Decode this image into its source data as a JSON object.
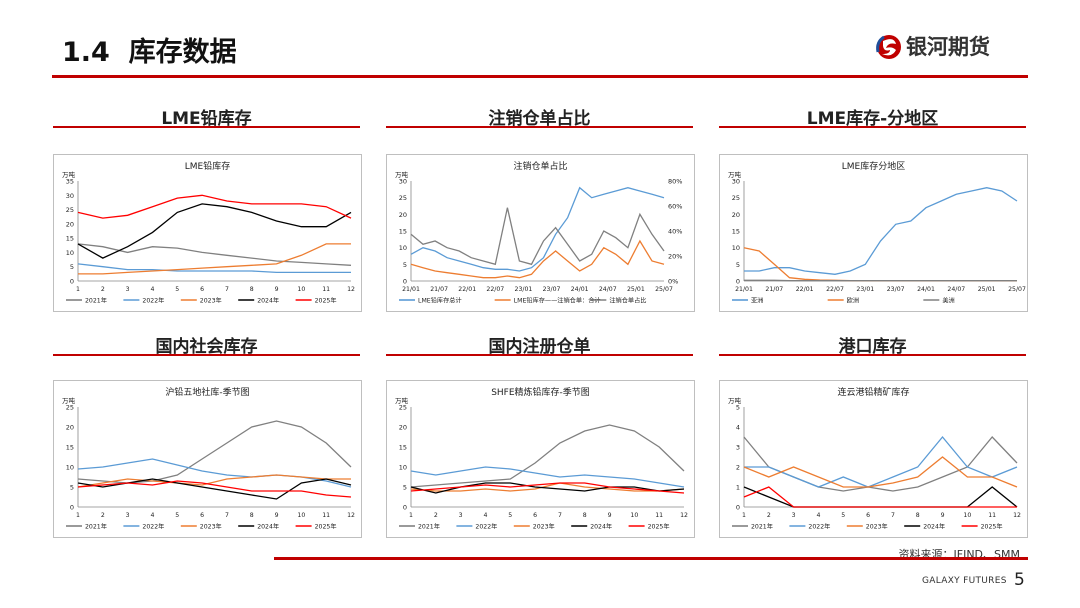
{
  "header": {
    "title": "1.4  库存数据",
    "logo_text": "银河期货"
  },
  "source": "资料来源：IFIND、SMM",
  "footer": {
    "company": "GALAXY FUTURES",
    "page": "5"
  },
  "colors": {
    "accent": "#c00000"
  },
  "sections": [
    "LME铅库存",
    "注销仓单占比",
    "LME库存-分地区",
    "国内社会库存",
    "国内注册仓单",
    "港口库存"
  ],
  "chart_data": [
    {
      "type": "line",
      "title": "LME铅库存",
      "unit": "万吨",
      "ylim": [
        0,
        35
      ],
      "yticks": [
        "0",
        "5",
        "10",
        "15",
        "20",
        "25",
        "30",
        "35"
      ],
      "x": [
        1,
        2,
        3,
        4,
        5,
        6,
        7,
        8,
        9,
        10,
        11,
        12
      ],
      "xticks": [
        "1",
        "2",
        "3",
        "4",
        "5",
        "6",
        "7",
        "8",
        "9",
        "10",
        "11",
        "12"
      ],
      "series": [
        {
          "name": "2021年",
          "color": "#808080",
          "values": [
            13,
            12,
            10,
            12,
            11.5,
            10,
            9,
            8,
            7,
            6.5,
            6,
            5.5
          ]
        },
        {
          "name": "2022年",
          "color": "#5b9bd5",
          "values": [
            6,
            5,
            4,
            4,
            3.5,
            3.5,
            3.5,
            3.5,
            3,
            3,
            3,
            3
          ]
        },
        {
          "name": "2023年",
          "color": "#ed7d31",
          "values": [
            2.5,
            2.5,
            3,
            3.5,
            4,
            4.5,
            5,
            5.5,
            6,
            9,
            13,
            13
          ]
        },
        {
          "name": "2024年",
          "color": "#000000",
          "values": [
            13,
            8,
            12,
            17,
            24,
            27,
            26,
            24,
            21,
            19,
            19,
            24
          ]
        },
        {
          "name": "2025年",
          "color": "#ff0000",
          "values": [
            24,
            22,
            23,
            26,
            29,
            30,
            28,
            27,
            27,
            27,
            26,
            22
          ]
        }
      ]
    },
    {
      "type": "line",
      "title": "注销仓单占比",
      "unit": "万吨",
      "ylim": [
        0,
        30
      ],
      "yticks": [
        "0",
        "5",
        "10",
        "15",
        "20",
        "25",
        "30"
      ],
      "y2ticks": [
        "0%",
        "20%",
        "40%",
        "60%",
        "80%"
      ],
      "xticks": [
        "21/01",
        "21/07",
        "22/01",
        "22/07",
        "23/01",
        "23/07",
        "24/01",
        "24/07",
        "25/01",
        "25/07"
      ],
      "series": [
        {
          "name": "LME铅库存总计",
          "color": "#5b9bd5",
          "values": [
            8,
            10,
            9,
            7,
            6,
            5,
            4,
            3.5,
            3.5,
            3,
            4,
            7,
            14,
            19,
            28,
            25,
            26,
            27,
            28,
            27,
            26,
            25
          ]
        },
        {
          "name": "LME铅库存——注销仓单：合计",
          "color": "#ed7d31",
          "values": [
            5,
            4,
            3,
            2.5,
            2,
            1.5,
            1,
            1,
            1.5,
            1,
            2,
            6,
            9,
            6,
            3,
            5,
            10,
            8,
            5,
            12,
            6,
            5
          ]
        },
        {
          "name": "注销仓单占比",
          "color": "#808080",
          "values": [
            14,
            11,
            12,
            10,
            9,
            7,
            6,
            5,
            22,
            6,
            5,
            12,
            16,
            11,
            6,
            8,
            15,
            13,
            10,
            20,
            14,
            9
          ]
        }
      ]
    },
    {
      "type": "line",
      "title": "LME库存分地区",
      "unit": "万吨",
      "ylim": [
        0,
        30
      ],
      "yticks": [
        "0",
        "5",
        "10",
        "15",
        "20",
        "25",
        "30"
      ],
      "xticks": [
        "21/01",
        "21/07",
        "22/01",
        "22/07",
        "23/01",
        "23/07",
        "24/01",
        "24/07",
        "25/01",
        "25/07"
      ],
      "series": [
        {
          "name": "亚洲",
          "color": "#5b9bd5",
          "values": [
            3,
            3,
            4,
            4,
            3,
            2.5,
            2,
            3,
            5,
            12,
            17,
            18,
            22,
            24,
            26,
            27,
            28,
            27,
            24
          ]
        },
        {
          "name": "欧洲",
          "color": "#ed7d31",
          "values": [
            10,
            9,
            5,
            1,
            0.5,
            0.3,
            0.2,
            0.1,
            0.1,
            0.1,
            0.1,
            0.1,
            0.1,
            0.1,
            0.1,
            0.1,
            0.1,
            0.1,
            0.1
          ]
        },
        {
          "name": "美洲",
          "color": "#808080",
          "values": [
            0.2,
            0.2,
            0.2,
            0.1,
            0.1,
            0.1,
            0.1,
            0.1,
            0.1,
            0.1,
            0.1,
            0.1,
            0.1,
            0.1,
            0.1,
            0.1,
            0.1,
            0.1,
            0.1
          ]
        }
      ]
    },
    {
      "type": "line",
      "title": "沪铅五地社库-季节图",
      "unit": "万吨",
      "ylim": [
        0,
        25
      ],
      "yticks": [
        "0",
        "5",
        "10",
        "15",
        "20",
        "25"
      ],
      "x": [
        1,
        2,
        3,
        4,
        5,
        6,
        7,
        8,
        9,
        10,
        11,
        12
      ],
      "xticks": [
        "1",
        "2",
        "3",
        "4",
        "5",
        "6",
        "7",
        "8",
        "9",
        "10",
        "11",
        "12"
      ],
      "series": [
        {
          "name": "2021年",
          "color": "#808080",
          "values": [
            7,
            6.5,
            6,
            6.5,
            8,
            12,
            16,
            20,
            21.5,
            20,
            16,
            10
          ]
        },
        {
          "name": "2022年",
          "color": "#5b9bd5",
          "values": [
            9.5,
            10,
            11,
            12,
            10.5,
            9,
            8,
            7.5,
            8,
            7.5,
            6.5,
            5
          ]
        },
        {
          "name": "2023年",
          "color": "#ed7d31",
          "values": [
            5,
            6,
            7,
            6.5,
            6,
            5.5,
            7,
            7.5,
            8,
            7.5,
            7,
            7
          ]
        },
        {
          "name": "2024年",
          "color": "#000000",
          "values": [
            6,
            5,
            6,
            7,
            6,
            5,
            4,
            3,
            2,
            6,
            7,
            5.5
          ]
        },
        {
          "name": "2025年",
          "color": "#ff0000",
          "values": [
            5,
            5.5,
            6,
            5.5,
            6.5,
            6,
            5,
            4,
            4,
            4,
            3,
            2.5
          ]
        }
      ]
    },
    {
      "type": "line",
      "title": "SHFE精炼铅库存-季节图",
      "unit": "万吨",
      "ylim": [
        0,
        25
      ],
      "yticks": [
        "0",
        "5",
        "10",
        "15",
        "20",
        "25"
      ],
      "x": [
        1,
        2,
        3,
        4,
        5,
        6,
        7,
        8,
        9,
        10,
        11,
        12
      ],
      "xticks": [
        "1",
        "2",
        "3",
        "4",
        "5",
        "6",
        "7",
        "8",
        "9",
        "10",
        "11",
        "12"
      ],
      "series": [
        {
          "name": "2021年",
          "color": "#808080",
          "values": [
            5,
            5.5,
            6,
            6.5,
            7,
            11,
            16,
            19,
            20.5,
            19,
            15,
            9
          ]
        },
        {
          "name": "2022年",
          "color": "#5b9bd5",
          "values": [
            9,
            8,
            9,
            10,
            9.5,
            8.5,
            7.5,
            8,
            7.5,
            7,
            6,
            5
          ]
        },
        {
          "name": "2023年",
          "color": "#ed7d31",
          "values": [
            4.5,
            4,
            4,
            4.5,
            4,
            4.5,
            6,
            5,
            4.5,
            4,
            4,
            4.5
          ]
        },
        {
          "name": "2024年",
          "color": "#000000",
          "values": [
            5,
            3.5,
            5,
            6,
            6,
            5,
            4.5,
            4,
            5,
            5,
            4,
            4.5
          ]
        },
        {
          "name": "2025年",
          "color": "#ff0000",
          "values": [
            4,
            4.5,
            5,
            5.5,
            5,
            5.5,
            6,
            6,
            5,
            4.5,
            4,
            3.5
          ]
        }
      ]
    },
    {
      "type": "line",
      "title": "连云港铅精矿库存",
      "unit": "万吨",
      "ylim": [
        0,
        5
      ],
      "yticks": [
        "0",
        "1",
        "2",
        "3",
        "4",
        "5"
      ],
      "x": [
        1,
        2,
        3,
        4,
        5,
        6,
        7,
        8,
        9,
        10,
        11,
        12
      ],
      "xticks": [
        "1",
        "2",
        "3",
        "4",
        "5",
        "6",
        "7",
        "8",
        "9",
        "10",
        "11",
        "12"
      ],
      "series": [
        {
          "name": "2021年",
          "color": "#808080",
          "values": [
            3.5,
            2,
            1.5,
            1,
            0.8,
            1,
            0.8,
            1,
            1.5,
            2,
            3.5,
            2.2
          ]
        },
        {
          "name": "2022年",
          "color": "#5b9bd5",
          "values": [
            2,
            2,
            1.5,
            1,
            1.5,
            1,
            1.5,
            2,
            3.5,
            2,
            1.5,
            2
          ]
        },
        {
          "name": "2023年",
          "color": "#ed7d31",
          "values": [
            2,
            1.5,
            2,
            1.5,
            1,
            1,
            1.2,
            1.5,
            2.5,
            1.5,
            1.5,
            1
          ]
        },
        {
          "name": "2024年",
          "color": "#000000",
          "values": [
            1,
            0.5,
            0,
            0,
            0,
            0,
            0,
            0,
            0,
            0,
            1,
            0
          ]
        },
        {
          "name": "2025年",
          "color": "#ff0000",
          "values": [
            0.5,
            1,
            0,
            0,
            0,
            0,
            0,
            0,
            0,
            0,
            0,
            0
          ]
        }
      ]
    }
  ]
}
